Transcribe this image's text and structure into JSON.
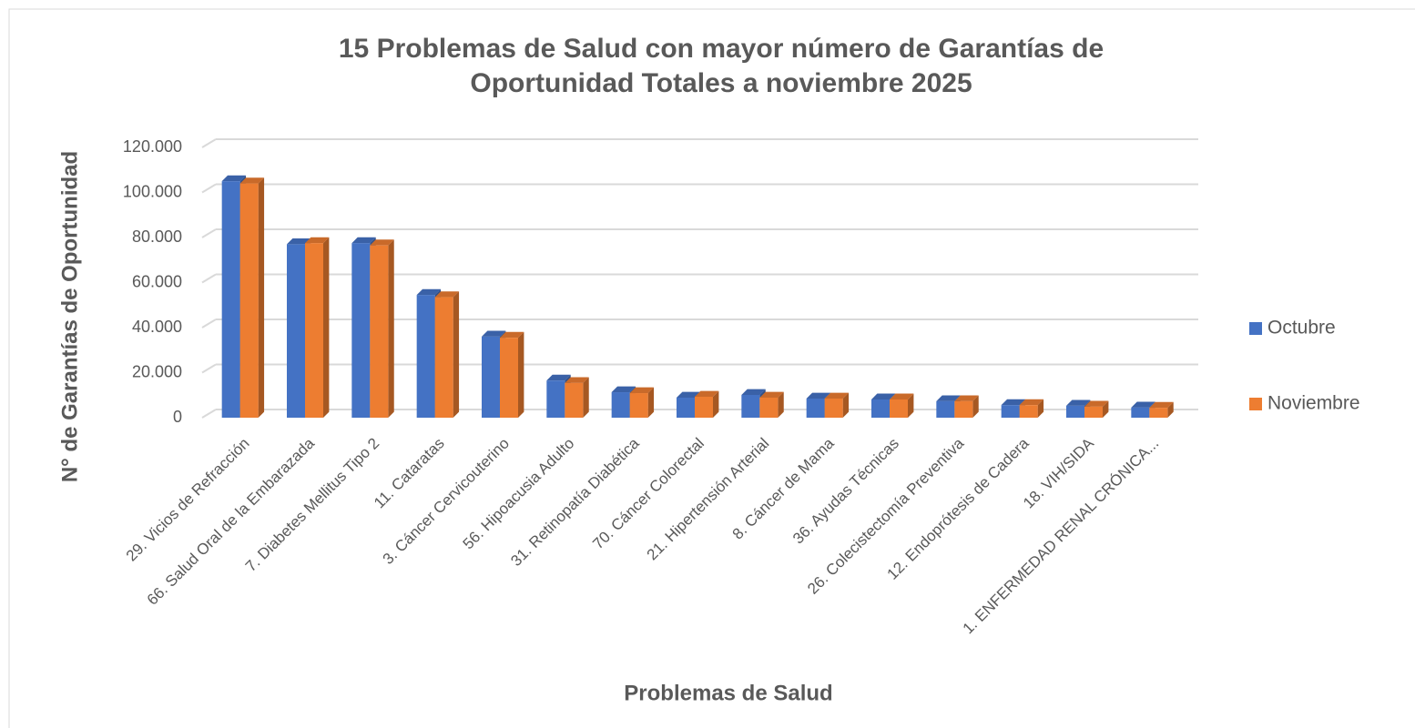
{
  "chart_data": {
    "type": "bar",
    "title": [
      "15 Problemas de Salud con mayor número de Garantías de",
      "Oportunidad Totales a noviembre 2025"
    ],
    "x_label": "Problemas de Salud",
    "y_label": "N° de Garantías de Oportunidad",
    "categories": [
      "29. Vicios de Refracción",
      "66. Salud Oral de la Embarazada",
      "7. Diabetes Mellitus Tipo 2",
      "11. Cataratas",
      "3. Cáncer Cervicouterino",
      "56. Hipoacusia Adulto",
      "31. Retinopatía Diabética",
      "70. Cáncer Colorectal",
      "21. Hipertensión Arterial",
      "8. Cáncer de Mama",
      "36. Ayudas Técnicas",
      "26. Colecistectomía Preventiva",
      "12. Endoprótesis de Cadera",
      "18. VIH/SIDA",
      "1. ENFERMEDAD RENAL CRÓNICA..."
    ],
    "series": [
      {
        "name": "Octubre",
        "color": "#4472c4",
        "values": [
          105000,
          77000,
          77500,
          54500,
          36000,
          16500,
          11300,
          8900,
          10100,
          8500,
          8100,
          7300,
          5600,
          5300,
          4500
        ]
      },
      {
        "name": "Noviembre",
        "color": "#ed7d31",
        "values": [
          104000,
          77500,
          76500,
          53500,
          35500,
          15400,
          10900,
          9300,
          8900,
          8500,
          8100,
          7300,
          5600,
          4900,
          4400
        ]
      }
    ],
    "ylim": [
      0,
      120000
    ],
    "yticks": [
      0,
      {
        "value": 20000,
        "label": "20.000"
      },
      {
        "value": 40000,
        "label": "40.000"
      },
      {
        "value": 60000,
        "label": "60.000"
      },
      {
        "value": 80000,
        "label": "80.000"
      },
      {
        "value": 100000,
        "label": "100.000"
      },
      {
        "value": 120000,
        "label": "120.000"
      }
    ],
    "grid": true,
    "legend": "right"
  }
}
